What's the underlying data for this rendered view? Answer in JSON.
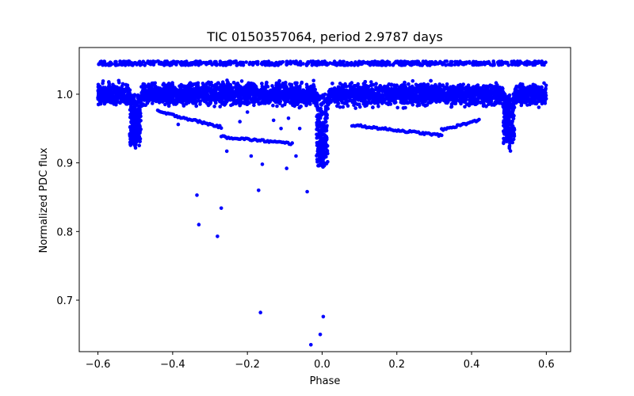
{
  "chart_data": {
    "type": "scatter",
    "title": "TIC 0150357064, period 2.9787 days",
    "xlabel": "Phase",
    "ylabel": "Normalized PDC flux",
    "xlim": [
      -0.65,
      0.665
    ],
    "ylim": [
      0.625,
      1.068
    ],
    "xticks": [
      -0.6,
      -0.4,
      -0.2,
      0.0,
      0.2,
      0.4,
      0.6
    ],
    "xtick_labels": [
      "−0.6",
      "−0.4",
      "−0.2",
      "0.0",
      "0.2",
      "0.4",
      "0.6"
    ],
    "yticks": [
      0.7,
      0.8,
      0.9,
      1.0
    ],
    "ytick_labels": [
      "0.7",
      "0.8",
      "0.9",
      "1.0"
    ],
    "grid": false,
    "series": [
      {
        "color": "#0000ff",
        "band": {
          "x_range": [
            -0.6,
            0.6
          ],
          "baseline": 1.0,
          "spread": 0.022,
          "upper_edge": 1.048
        },
        "dips": [
          {
            "center": -0.5,
            "min": 0.925
          },
          {
            "center": 0.0,
            "min": 0.895
          },
          {
            "center": 0.5,
            "min": 0.928
          }
        ],
        "lower_tracks": [
          {
            "x": [
              -0.44,
              -0.27
            ],
            "y": [
              0.975,
              0.952
            ]
          },
          {
            "x": [
              -0.27,
              -0.08
            ],
            "y": [
              0.938,
              0.928
            ]
          },
          {
            "x": [
              0.08,
              0.32
            ],
            "y": [
              0.955,
              0.94
            ]
          },
          {
            "x": [
              0.32,
              0.42
            ],
            "y": [
              0.948,
              0.962
            ]
          }
        ],
        "outliers": [
          {
            "x": -0.335,
            "y": 0.853
          },
          {
            "x": -0.33,
            "y": 0.81
          },
          {
            "x": -0.28,
            "y": 0.793
          },
          {
            "x": -0.27,
            "y": 0.834
          },
          {
            "x": -0.255,
            "y": 0.917
          },
          {
            "x": -0.19,
            "y": 0.91
          },
          {
            "x": -0.17,
            "y": 0.86
          },
          {
            "x": -0.16,
            "y": 0.898
          },
          {
            "x": -0.165,
            "y": 0.682
          },
          {
            "x": -0.095,
            "y": 0.892
          },
          {
            "x": -0.07,
            "y": 0.91
          },
          {
            "x": -0.04,
            "y": 0.858
          },
          {
            "x": -0.03,
            "y": 0.635
          },
          {
            "x": -0.005,
            "y": 0.65
          },
          {
            "x": 0.003,
            "y": 0.676
          },
          {
            "x": -0.22,
            "y": 0.96
          },
          {
            "x": -0.13,
            "y": 0.962
          },
          {
            "x": -0.2,
            "y": 0.974
          },
          {
            "x": -0.09,
            "y": 0.965
          },
          {
            "x": -0.11,
            "y": 0.95
          },
          {
            "x": -0.06,
            "y": 0.95
          },
          {
            "x": -0.385,
            "y": 0.956
          }
        ]
      }
    ]
  }
}
